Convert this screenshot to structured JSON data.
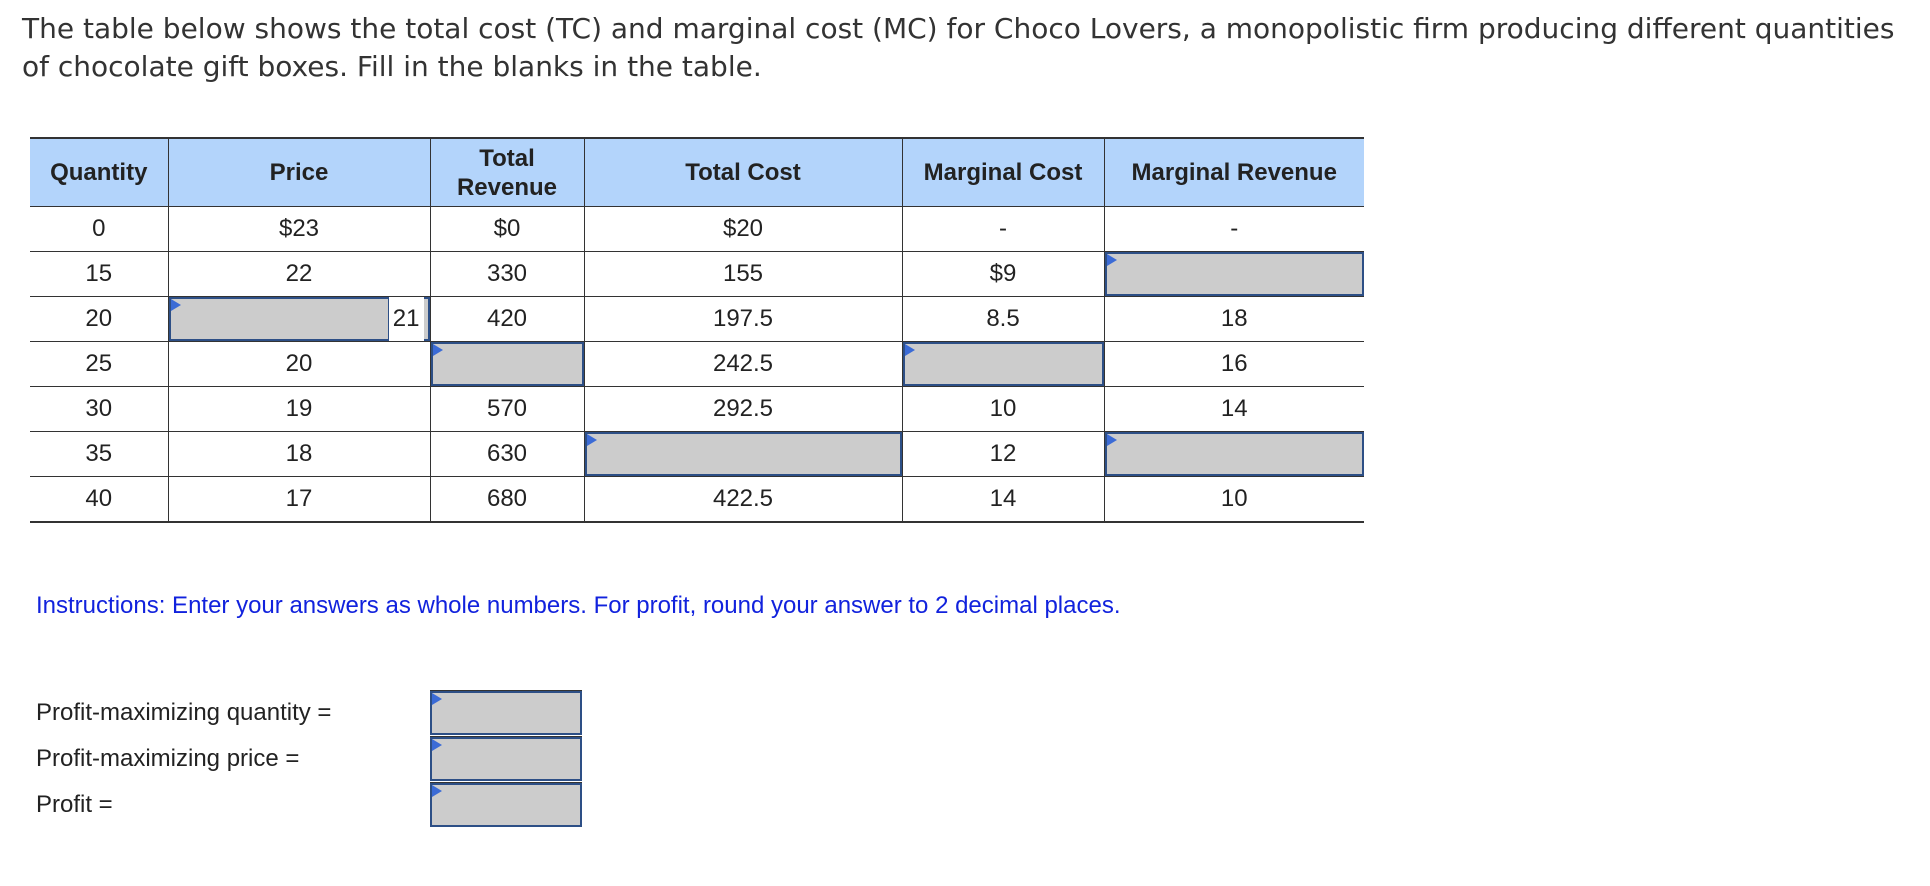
{
  "question": "The table below shows the total cost (TC) and marginal cost (MC) for Choco Lovers, a monopolistic firm producing different quantities of chocolate gift boxes. Fill in the blanks in the table.",
  "table": {
    "headers": {
      "quantity": "Quantity",
      "price": "Price",
      "total_revenue_line1": "Total",
      "total_revenue_line2": "Revenue",
      "total_cost": "Total Cost",
      "marginal_cost": "Marginal Cost",
      "marginal_revenue": "Marginal Revenue"
    },
    "rows": [
      {
        "quantity": "0",
        "price": "$23",
        "tr": "$0",
        "tc": "$20",
        "mc": "-",
        "mr": "-"
      },
      {
        "quantity": "15",
        "price": "22",
        "tr": "330",
        "tc": "155",
        "mc": "$9",
        "mr": ""
      },
      {
        "quantity": "20",
        "price": "21",
        "tr": "420",
        "tc": "197.5",
        "mc": "8.5",
        "mr": "18"
      },
      {
        "quantity": "25",
        "price": "20",
        "tr": "",
        "tc": "242.5",
        "mc": "",
        "mr": "16"
      },
      {
        "quantity": "30",
        "price": "19",
        "tr": "570",
        "tc": "292.5",
        "mc": "10",
        "mr": "14"
      },
      {
        "quantity": "35",
        "price": "18",
        "tr": "630",
        "tc": "",
        "mc": "12",
        "mr": ""
      },
      {
        "quantity": "40",
        "price": "17",
        "tr": "680",
        "tc": "422.5",
        "mc": "14",
        "mr": "10"
      }
    ]
  },
  "instructions": "Instructions: Enter your answers as whole numbers. For profit, round your answer to 2 decimal places.",
  "answers": {
    "quantity_label": "Profit-maximizing quantity =",
    "price_label": "Profit-maximizing price =",
    "profit_label": "Profit =",
    "quantity_value": "",
    "price_value": "",
    "profit_value": ""
  },
  "colors": {
    "header_bg": "#b3d4fb",
    "input_bg": "#cccccc",
    "input_border": "#2d4f86",
    "input_marker": "#3b6bd6",
    "instructions_text": "#1122dd"
  }
}
